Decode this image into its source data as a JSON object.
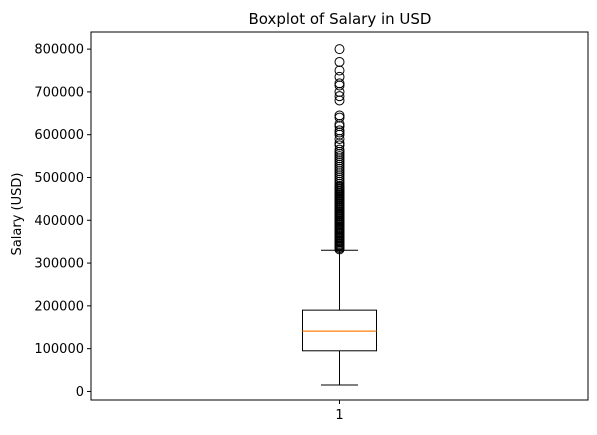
{
  "chart_data": {
    "type": "boxplot",
    "title": "Boxplot of Salary in USD",
    "xlabel": "",
    "ylabel": "Salary (USD)",
    "ylim": [
      -20000,
      840000
    ],
    "yticks": [
      0,
      100000,
      200000,
      300000,
      400000,
      500000,
      600000,
      700000,
      800000
    ],
    "ytick_labels": [
      "0",
      "100000",
      "200000",
      "300000",
      "400000",
      "500000",
      "600000",
      "700000",
      "800000"
    ],
    "categories": [
      "1"
    ],
    "box": {
      "whisker_low": 15000,
      "q1": 95000,
      "median": 141000,
      "q3": 190000,
      "whisker_high": 330000
    },
    "outliers": [
      332000,
      335000,
      338000,
      340000,
      342000,
      345000,
      348000,
      350000,
      352000,
      355000,
      358000,
      360000,
      362000,
      365000,
      368000,
      370000,
      372000,
      375000,
      378000,
      380000,
      382000,
      385000,
      388000,
      390000,
      393000,
      395000,
      398000,
      400000,
      403000,
      405000,
      408000,
      410000,
      413000,
      415000,
      418000,
      420000,
      423000,
      425000,
      428000,
      430000,
      433000,
      435000,
      438000,
      440000,
      443000,
      445000,
      448000,
      450000,
      453000,
      455000,
      458000,
      460000,
      463000,
      465000,
      468000,
      470000,
      473000,
      475000,
      478000,
      480000,
      485000,
      490000,
      495000,
      500000,
      505000,
      510000,
      515000,
      520000,
      525000,
      530000,
      535000,
      540000,
      545000,
      550000,
      555000,
      560000,
      565000,
      575000,
      580000,
      590000,
      600000,
      605000,
      610000,
      620000,
      625000,
      640000,
      645000,
      680000,
      690000,
      700000,
      715000,
      720000,
      735000,
      750000,
      770000,
      800000
    ],
    "colors": {
      "box": "#000000",
      "median": "#ff7f0e",
      "outlier": "#000000"
    },
    "grid": false
  }
}
